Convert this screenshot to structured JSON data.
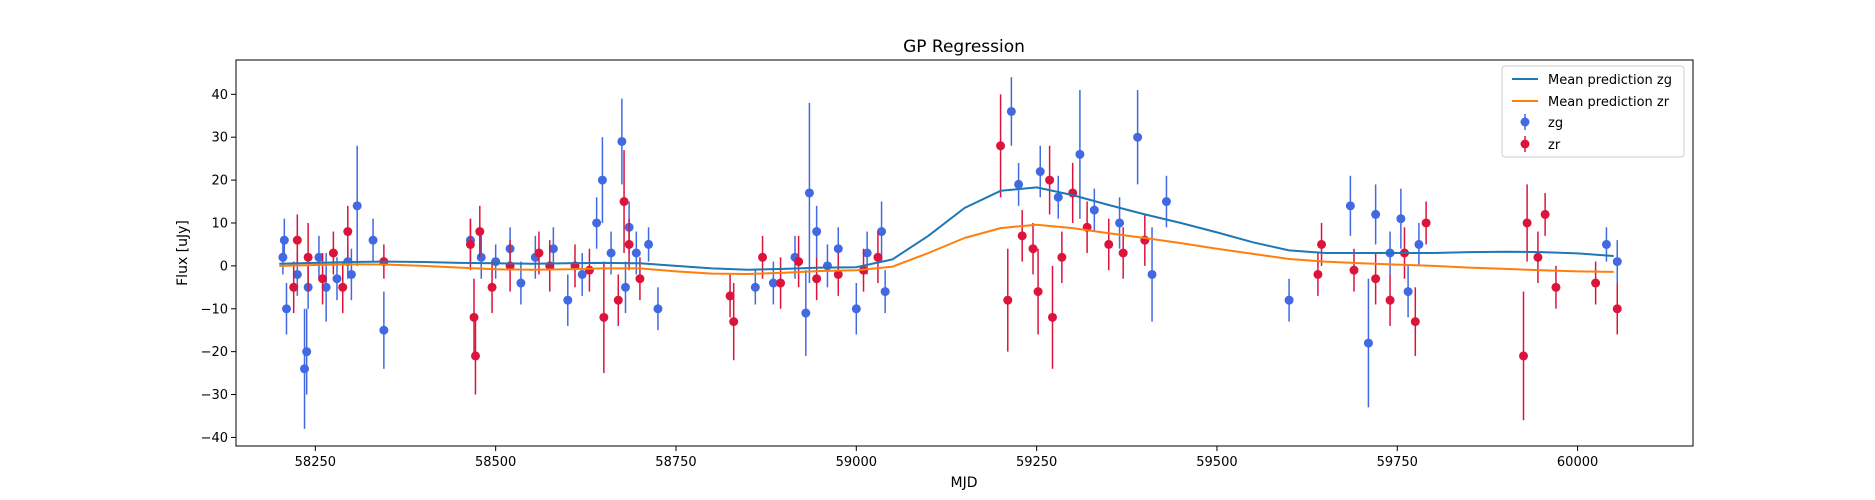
{
  "chart_data": {
    "type": "scatter",
    "title": "GP Regression",
    "xlabel": "MJD",
    "ylabel": "Flux [uJy]",
    "xlim": [
      58140,
      60160
    ],
    "ylim": [
      -42,
      48
    ],
    "xticks": [
      58250,
      58500,
      58750,
      59000,
      59250,
      59500,
      59750,
      60000
    ],
    "yticks": [
      -40,
      -30,
      -20,
      -10,
      0,
      10,
      20,
      30,
      40
    ],
    "grid": false,
    "legend_position": "top-right",
    "legend": [
      "Mean prediction zg",
      "Mean prediction zr",
      "zg",
      "zr"
    ],
    "colors": {
      "mean_zg": "#1f77b4",
      "mean_zr": "#ff7f0e",
      "zg": "#4169e1",
      "zr": "#dc143c"
    },
    "series": [
      {
        "name": "Mean prediction zg",
        "kind": "line",
        "color": "#1f77b4",
        "x": [
          58200,
          58250,
          58300,
          58350,
          58400,
          58450,
          58500,
          58550,
          58600,
          58650,
          58700,
          58750,
          58800,
          58850,
          58900,
          58950,
          59000,
          59050,
          59100,
          59150,
          59200,
          59250,
          59300,
          59350,
          59400,
          59450,
          59500,
          59550,
          59600,
          59650,
          59700,
          59750,
          59800,
          59850,
          59900,
          59950,
          60000,
          60050
        ],
        "y": [
          0.5,
          0.7,
          0.9,
          1.0,
          0.9,
          0.7,
          0.6,
          0.5,
          0.6,
          0.7,
          0.6,
          0.0,
          -0.6,
          -0.9,
          -0.7,
          -0.4,
          -0.3,
          1.5,
          7.0,
          13.5,
          17.5,
          18.3,
          16.5,
          14.2,
          12.0,
          10.0,
          7.8,
          5.5,
          3.6,
          3.0,
          3.0,
          3.0,
          3.0,
          3.2,
          3.3,
          3.2,
          2.9,
          2.3
        ]
      },
      {
        "name": "Mean prediction zr",
        "kind": "line",
        "color": "#ff7f0e",
        "x": [
          58200,
          58250,
          58300,
          58350,
          58400,
          58450,
          58500,
          58550,
          58600,
          58650,
          58700,
          58750,
          58800,
          58850,
          58900,
          58950,
          59000,
          59050,
          59100,
          59150,
          59200,
          59250,
          59300,
          59350,
          59400,
          59450,
          59500,
          59550,
          59600,
          59650,
          59700,
          59750,
          59800,
          59850,
          59900,
          59950,
          60000,
          60050
        ],
        "y": [
          0.0,
          0.2,
          0.4,
          0.3,
          0.0,
          -0.4,
          -0.8,
          -0.9,
          -0.8,
          -0.6,
          -0.6,
          -1.3,
          -1.8,
          -1.9,
          -1.6,
          -1.2,
          -1.0,
          -0.2,
          3.0,
          6.5,
          8.8,
          9.6,
          8.8,
          7.6,
          6.5,
          5.3,
          4.0,
          2.8,
          1.6,
          1.0,
          0.6,
          0.3,
          0.0,
          -0.4,
          -0.7,
          -1.0,
          -1.3,
          -1.4
        ]
      },
      {
        "name": "zg",
        "kind": "errorbar",
        "color": "#4169e1",
        "points": [
          [
            58205,
            2,
            4
          ],
          [
            58207,
            6,
            5
          ],
          [
            58210,
            -10,
            6
          ],
          [
            58225,
            -2,
            5
          ],
          [
            58235,
            -24,
            14
          ],
          [
            58238,
            -20,
            10
          ],
          [
            58240,
            -5,
            5
          ],
          [
            58255,
            2,
            5
          ],
          [
            58265,
            -5,
            8
          ],
          [
            58280,
            -3,
            5
          ],
          [
            58295,
            1,
            4
          ],
          [
            58300,
            -2,
            6
          ],
          [
            58308,
            14,
            14
          ],
          [
            58330,
            6,
            5
          ],
          [
            58345,
            -15,
            9
          ],
          [
            58465,
            6,
            5
          ],
          [
            58480,
            2,
            5
          ],
          [
            58500,
            1,
            4
          ],
          [
            58520,
            4,
            5
          ],
          [
            58535,
            -4,
            5
          ],
          [
            58555,
            2,
            5
          ],
          [
            58580,
            4,
            5
          ],
          [
            58600,
            -8,
            6
          ],
          [
            58620,
            -2,
            5
          ],
          [
            58640,
            10,
            6
          ],
          [
            58648,
            20,
            10
          ],
          [
            58660,
            3,
            5
          ],
          [
            58675,
            29,
            10
          ],
          [
            58680,
            -5,
            6
          ],
          [
            58685,
            9,
            6
          ],
          [
            58695,
            3,
            5
          ],
          [
            58712,
            5,
            4
          ],
          [
            58725,
            -10,
            5
          ],
          [
            58860,
            -5,
            4
          ],
          [
            58885,
            -4,
            5
          ],
          [
            58915,
            2,
            5
          ],
          [
            58930,
            -11,
            10
          ],
          [
            58935,
            17,
            21
          ],
          [
            58945,
            8,
            6
          ],
          [
            58960,
            0,
            5
          ],
          [
            58975,
            4,
            5
          ],
          [
            59000,
            -10,
            6
          ],
          [
            59015,
            3,
            5
          ],
          [
            59035,
            8,
            7
          ],
          [
            59040,
            -6,
            5
          ],
          [
            59215,
            36,
            8
          ],
          [
            59225,
            19,
            5
          ],
          [
            59255,
            22,
            6
          ],
          [
            59280,
            16,
            5
          ],
          [
            59310,
            26,
            15
          ],
          [
            59330,
            13,
            5
          ],
          [
            59365,
            10,
            6
          ],
          [
            59390,
            30,
            11
          ],
          [
            59410,
            -2,
            11
          ],
          [
            59430,
            15,
            6
          ],
          [
            59600,
            -8,
            5
          ],
          [
            59685,
            14,
            7
          ],
          [
            59710,
            -18,
            15
          ],
          [
            59720,
            12,
            7
          ],
          [
            59740,
            3,
            5
          ],
          [
            59755,
            11,
            7
          ],
          [
            59765,
            -6,
            6
          ],
          [
            59780,
            5,
            5
          ],
          [
            60040,
            5,
            4
          ],
          [
            60055,
            1,
            5
          ]
        ]
      },
      {
        "name": "zr",
        "kind": "errorbar",
        "color": "#dc143c",
        "points": [
          [
            58220,
            -5,
            6
          ],
          [
            58225,
            6,
            6
          ],
          [
            58240,
            2,
            8
          ],
          [
            58260,
            -3,
            6
          ],
          [
            58275,
            3,
            5
          ],
          [
            58288,
            -5,
            6
          ],
          [
            58295,
            8,
            6
          ],
          [
            58345,
            1,
            4
          ],
          [
            58465,
            5,
            6
          ],
          [
            58470,
            -12,
            9
          ],
          [
            58472,
            -21,
            9
          ],
          [
            58478,
            8,
            6
          ],
          [
            58495,
            -5,
            6
          ],
          [
            58520,
            0,
            6
          ],
          [
            58560,
            3,
            5
          ],
          [
            58575,
            0,
            6
          ],
          [
            58610,
            0,
            5
          ],
          [
            58630,
            -1,
            5
          ],
          [
            58650,
            -12,
            13
          ],
          [
            58670,
            -8,
            6
          ],
          [
            58678,
            15,
            12
          ],
          [
            58685,
            5,
            6
          ],
          [
            58700,
            -3,
            5
          ],
          [
            58825,
            -7,
            5
          ],
          [
            58830,
            -13,
            9
          ],
          [
            58870,
            2,
            5
          ],
          [
            58895,
            -4,
            6
          ],
          [
            58920,
            1,
            6
          ],
          [
            58945,
            -3,
            5
          ],
          [
            58975,
            -2,
            5
          ],
          [
            59010,
            -1,
            5
          ],
          [
            59030,
            2,
            6
          ],
          [
            59200,
            28,
            12
          ],
          [
            59210,
            -8,
            12
          ],
          [
            59230,
            7,
            6
          ],
          [
            59245,
            4,
            6
          ],
          [
            59252,
            -6,
            10
          ],
          [
            59268,
            20,
            8
          ],
          [
            59272,
            -12,
            12
          ],
          [
            59285,
            2,
            6
          ],
          [
            59300,
            17,
            7
          ],
          [
            59320,
            9,
            6
          ],
          [
            59350,
            5,
            6
          ],
          [
            59370,
            3,
            6
          ],
          [
            59400,
            6,
            6
          ],
          [
            59640,
            -2,
            5
          ],
          [
            59645,
            5,
            5
          ],
          [
            59690,
            -1,
            5
          ],
          [
            59720,
            -3,
            6
          ],
          [
            59740,
            -8,
            6
          ],
          [
            59760,
            3,
            6
          ],
          [
            59775,
            -13,
            8
          ],
          [
            59790,
            10,
            5
          ],
          [
            59925,
            -21,
            15
          ],
          [
            59930,
            10,
            9
          ],
          [
            59945,
            2,
            6
          ],
          [
            59955,
            12,
            5
          ],
          [
            59970,
            -5,
            5
          ],
          [
            60025,
            -4,
            5
          ],
          [
            60055,
            -10,
            6
          ]
        ]
      }
    ]
  }
}
